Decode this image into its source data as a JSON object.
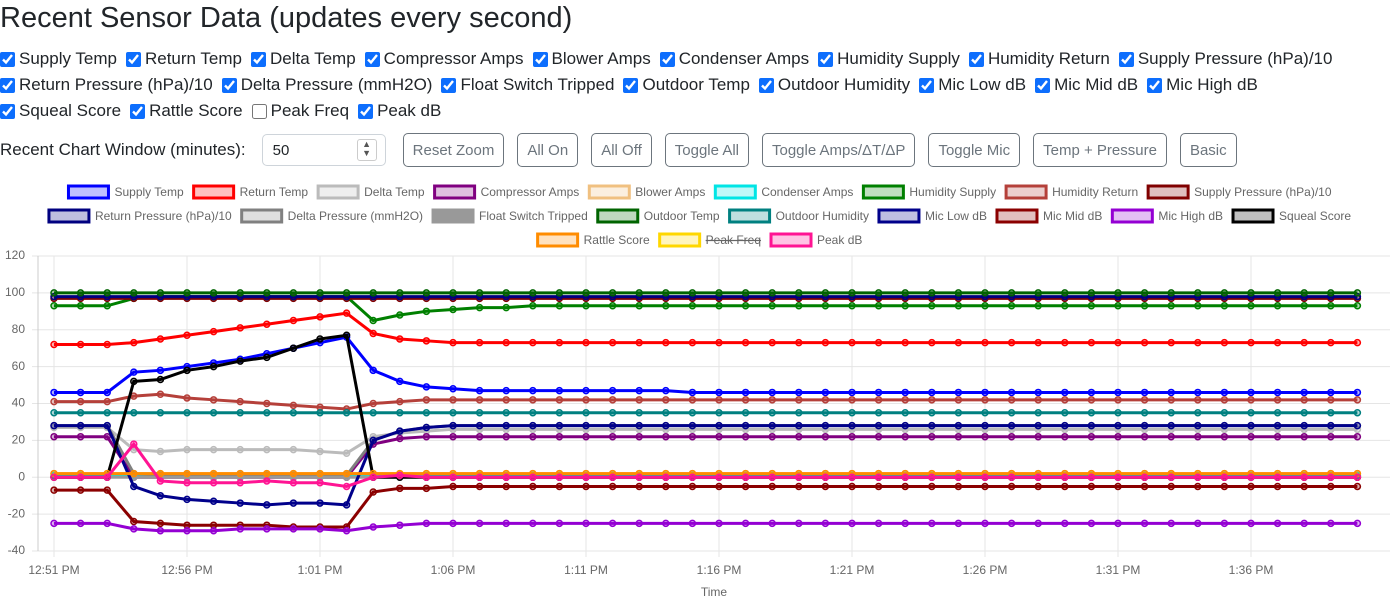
{
  "header": {
    "title": "Recent Sensor Data (updates every second)"
  },
  "controls": {
    "window_label": "Recent Chart Window (minutes):",
    "window_value": "50",
    "buttons": [
      "Reset Zoom",
      "All On",
      "All Off",
      "Toggle All",
      "Toggle Amps/ΔT/ΔP",
      "Toggle Mic",
      "Temp + Pressure",
      "Basic"
    ]
  },
  "chart_data": {
    "type": "line",
    "x_label": "Time",
    "categories": [
      "12:51 PM",
      null,
      null,
      null,
      null,
      "12:56 PM",
      null,
      null,
      null,
      null,
      "1:01 PM",
      null,
      null,
      null,
      null,
      "1:06 PM",
      null,
      null,
      null,
      null,
      "1:11 PM",
      null,
      null,
      null,
      null,
      "1:16 PM",
      null,
      null,
      null,
      null,
      "1:21 PM",
      null,
      null,
      null,
      null,
      "1:26 PM",
      null,
      null,
      null,
      null,
      "1:31 PM",
      null,
      null,
      null,
      null,
      "1:36 PM",
      null,
      null,
      null,
      null
    ],
    "ylim": [
      -40,
      120
    ],
    "yticks": [
      -40,
      -20,
      0,
      20,
      40,
      60,
      80,
      100,
      120
    ],
    "grid": true,
    "legend": "top",
    "series": [
      {
        "name": "Supply Temp",
        "color": "#0000ff",
        "values": [
          46,
          46,
          46,
          57,
          58,
          60,
          62,
          64,
          67,
          70,
          73,
          76,
          58,
          52,
          49,
          48,
          47,
          47,
          47,
          47,
          47,
          47,
          47,
          47,
          46,
          46,
          46,
          46,
          46,
          46,
          46,
          46,
          46,
          46,
          46,
          46,
          46,
          46,
          46,
          46,
          46,
          46,
          46,
          46,
          46,
          46,
          46,
          46,
          46,
          46
        ]
      },
      {
        "name": "Return Temp",
        "color": "#ff0000",
        "values": [
          72,
          72,
          72,
          73,
          75,
          77,
          79,
          81,
          83,
          85,
          87,
          89,
          78,
          75,
          74,
          73,
          73,
          73,
          73,
          73,
          73,
          73,
          73,
          73,
          73,
          73,
          73,
          73,
          73,
          73,
          73,
          73,
          73,
          73,
          73,
          73,
          73,
          73,
          73,
          73,
          73,
          73,
          73,
          73,
          73,
          73,
          73,
          73,
          73,
          73
        ]
      },
      {
        "name": "Delta Temp",
        "color": "#bbbbbb",
        "values": [
          27,
          27,
          27,
          15,
          14,
          15,
          15,
          15,
          15,
          15,
          14,
          13,
          22,
          24,
          25,
          26,
          26,
          26,
          26,
          26,
          26,
          26,
          26,
          26,
          26,
          26,
          26,
          26,
          26,
          26,
          26,
          26,
          26,
          26,
          26,
          26,
          26,
          26,
          26,
          26,
          26,
          26,
          26,
          26,
          26,
          26,
          26,
          26,
          26,
          26
        ]
      },
      {
        "name": "Compressor Amps",
        "color": "#800080",
        "values": [
          22,
          22,
          22,
          0,
          0,
          0,
          0,
          0,
          0,
          0,
          0,
          0,
          18,
          21,
          22,
          22,
          22,
          22,
          22,
          22,
          22,
          22,
          22,
          22,
          22,
          22,
          22,
          22,
          22,
          22,
          22,
          22,
          22,
          22,
          22,
          22,
          22,
          22,
          22,
          22,
          22,
          22,
          22,
          22,
          22,
          22,
          22,
          22,
          22,
          22
        ]
      },
      {
        "name": "Blower Amps",
        "color": "#f0c080",
        "values": [
          2,
          2,
          2,
          2,
          2,
          2,
          2,
          2,
          2,
          2,
          2,
          2,
          2,
          2,
          2,
          2,
          2,
          2,
          2,
          2,
          2,
          2,
          2,
          2,
          2,
          2,
          2,
          2,
          2,
          2,
          2,
          2,
          2,
          2,
          2,
          2,
          2,
          2,
          2,
          2,
          2,
          2,
          2,
          2,
          2,
          2,
          2,
          2,
          2,
          2
        ]
      },
      {
        "name": "Condenser Amps",
        "color": "#00e5e5",
        "values": [
          1,
          1,
          1,
          1,
          1,
          1,
          1,
          1,
          1,
          1,
          1,
          1,
          1,
          1,
          1,
          1,
          1,
          1,
          1,
          1,
          1,
          1,
          1,
          1,
          1,
          1,
          1,
          1,
          1,
          1,
          1,
          1,
          1,
          1,
          1,
          1,
          1,
          1,
          1,
          1,
          1,
          1,
          1,
          1,
          1,
          1,
          1,
          1,
          1,
          1
        ]
      },
      {
        "name": "Humidity Supply",
        "color": "#008000",
        "values": [
          93,
          93,
          93,
          97,
          98,
          98,
          98,
          98,
          98,
          98,
          98,
          98,
          85,
          88,
          90,
          91,
          92,
          92,
          93,
          93,
          93,
          93,
          93,
          93,
          93,
          93,
          93,
          93,
          93,
          93,
          93,
          93,
          93,
          93,
          93,
          93,
          93,
          93,
          93,
          93,
          93,
          93,
          93,
          93,
          93,
          93,
          93,
          93,
          93,
          93
        ]
      },
      {
        "name": "Humidity Return",
        "color": "#b5403a",
        "values": [
          41,
          41,
          41,
          44,
          45,
          43,
          42,
          41,
          40,
          39,
          38,
          37,
          40,
          41,
          42,
          42,
          42,
          42,
          42,
          42,
          42,
          42,
          42,
          42,
          42,
          42,
          42,
          42,
          42,
          42,
          42,
          42,
          42,
          42,
          42,
          42,
          42,
          42,
          42,
          42,
          42,
          42,
          42,
          42,
          42,
          42,
          42,
          42,
          42,
          42
        ]
      },
      {
        "name": "Supply Pressure (hPa)/10",
        "color": "#800000",
        "values": [
          97,
          97,
          97,
          97,
          97,
          97,
          97,
          97,
          97,
          97,
          97,
          97,
          97,
          97,
          97,
          97,
          97,
          97,
          97,
          97,
          97,
          97,
          97,
          97,
          97,
          97,
          97,
          97,
          97,
          97,
          97,
          97,
          97,
          97,
          97,
          97,
          97,
          97,
          97,
          97,
          97,
          97,
          97,
          97,
          97,
          97,
          97,
          97,
          97,
          97
        ]
      },
      {
        "name": "Return Pressure (hPa)/10",
        "color": "#000080",
        "values": [
          98,
          98,
          98,
          98,
          98,
          98,
          98,
          98,
          98,
          98,
          98,
          98,
          98,
          98,
          98,
          98,
          98,
          98,
          98,
          98,
          98,
          98,
          98,
          98,
          98,
          98,
          98,
          98,
          98,
          98,
          98,
          98,
          98,
          98,
          98,
          98,
          98,
          98,
          98,
          98,
          98,
          98,
          98,
          98,
          98,
          98,
          98,
          98,
          98,
          98
        ]
      },
      {
        "name": "Delta Pressure (mmH2O)",
        "color": "#808080",
        "values": [
          28,
          28,
          28,
          2,
          1,
          1,
          1,
          1,
          1,
          1,
          1,
          1,
          20,
          25,
          27,
          28,
          28,
          28,
          28,
          28,
          28,
          28,
          28,
          28,
          28,
          28,
          28,
          28,
          28,
          28,
          28,
          28,
          28,
          28,
          28,
          28,
          28,
          28,
          28,
          28,
          28,
          28,
          28,
          28,
          28,
          28,
          28,
          28,
          28,
          28
        ]
      },
      {
        "name": "Float Switch Tripped",
        "color": "#999999",
        "filled": true,
        "values": [
          0,
          0,
          0,
          0,
          0,
          0,
          0,
          0,
          0,
          0,
          0,
          0,
          0,
          0,
          0,
          0,
          0,
          0,
          0,
          0,
          0,
          0,
          0,
          0,
          0,
          0,
          0,
          0,
          0,
          0,
          0,
          0,
          0,
          0,
          0,
          0,
          0,
          0,
          0,
          0,
          0,
          0,
          0,
          0,
          0,
          0,
          0,
          0,
          0,
          0
        ]
      },
      {
        "name": "Outdoor Temp",
        "color": "#006400",
        "values": [
          100,
          100,
          100,
          100,
          100,
          100,
          100,
          100,
          100,
          100,
          100,
          100,
          100,
          100,
          100,
          100,
          100,
          100,
          100,
          100,
          100,
          100,
          100,
          100,
          100,
          100,
          100,
          100,
          100,
          100,
          100,
          100,
          100,
          100,
          100,
          100,
          100,
          100,
          100,
          100,
          100,
          100,
          100,
          100,
          100,
          100,
          100,
          100,
          100,
          100
        ]
      },
      {
        "name": "Outdoor Humidity",
        "color": "#008080",
        "values": [
          35,
          35,
          35,
          35,
          35,
          35,
          35,
          35,
          35,
          35,
          35,
          35,
          35,
          35,
          35,
          35,
          35,
          35,
          35,
          35,
          35,
          35,
          35,
          35,
          35,
          35,
          35,
          35,
          35,
          35,
          35,
          35,
          35,
          35,
          35,
          35,
          35,
          35,
          35,
          35,
          35,
          35,
          35,
          35,
          35,
          35,
          35,
          35,
          35,
          35
        ]
      },
      {
        "name": "Mic Low dB",
        "color": "#00008b",
        "values": [
          28,
          28,
          28,
          -5,
          -10,
          -12,
          -13,
          -14,
          -15,
          -14,
          -14,
          -15,
          20,
          25,
          27,
          28,
          28,
          28,
          28,
          28,
          28,
          28,
          28,
          28,
          28,
          28,
          28,
          28,
          28,
          28,
          28,
          28,
          28,
          28,
          28,
          28,
          28,
          28,
          28,
          28,
          28,
          28,
          28,
          28,
          28,
          28,
          28,
          28,
          28,
          28
        ]
      },
      {
        "name": "Mic Mid dB",
        "color": "#8b0000",
        "values": [
          -7,
          -7,
          -7,
          -24,
          -25,
          -26,
          -26,
          -26,
          -26,
          -27,
          -27,
          -27,
          -8,
          -6,
          -6,
          -5,
          -5,
          -5,
          -5,
          -5,
          -5,
          -5,
          -5,
          -5,
          -5,
          -5,
          -5,
          -5,
          -5,
          -5,
          -5,
          -5,
          -5,
          -5,
          -5,
          -5,
          -5,
          -5,
          -5,
          -5,
          -5,
          -5,
          -5,
          -5,
          -5,
          -5,
          -5,
          -5,
          -5,
          -5
        ]
      },
      {
        "name": "Mic High dB",
        "color": "#9400d3",
        "values": [
          -25,
          -25,
          -25,
          -28,
          -29,
          -29,
          -29,
          -28,
          -28,
          -28,
          -28,
          -29,
          -27,
          -26,
          -25,
          -25,
          -25,
          -25,
          -25,
          -25,
          -25,
          -25,
          -25,
          -25,
          -25,
          -25,
          -25,
          -25,
          -25,
          -25,
          -25,
          -25,
          -25,
          -25,
          -25,
          -25,
          -25,
          -25,
          -25,
          -25,
          -25,
          -25,
          -25,
          -25,
          -25,
          -25,
          -25,
          -25,
          -25,
          -25
        ]
      },
      {
        "name": "Squeal Score",
        "color": "#000000",
        "values": [
          0,
          0,
          0,
          52,
          53,
          58,
          60,
          63,
          65,
          70,
          75,
          77,
          0,
          0,
          0,
          0,
          0,
          0,
          0,
          0,
          0,
          0,
          0,
          0,
          0,
          0,
          0,
          0,
          0,
          0,
          0,
          0,
          0,
          0,
          0,
          0,
          0,
          0,
          0,
          0,
          0,
          0,
          0,
          0,
          0,
          0,
          0,
          0,
          0,
          0
        ]
      },
      {
        "name": "Rattle Score",
        "color": "#ff8c00",
        "values": [
          2,
          2,
          2,
          2,
          2,
          2,
          2,
          2,
          2,
          2,
          2,
          2,
          2,
          2,
          2,
          2,
          2,
          2,
          2,
          2,
          2,
          2,
          2,
          2,
          2,
          2,
          2,
          2,
          2,
          2,
          2,
          2,
          2,
          2,
          2,
          2,
          2,
          2,
          2,
          2,
          2,
          2,
          2,
          2,
          2,
          2,
          2,
          2,
          2,
          2
        ]
      },
      {
        "name": "Peak Freq",
        "color": "#ffd700",
        "hidden": true
      },
      {
        "name": "Peak dB",
        "color": "#ff1493",
        "values": [
          0,
          0,
          0,
          18,
          -2,
          -3,
          -3,
          -3,
          -2,
          -3,
          -3,
          -5,
          0,
          1,
          0,
          0,
          0,
          0,
          0,
          0,
          0,
          0,
          0,
          0,
          0,
          0,
          0,
          0,
          0,
          0,
          0,
          0,
          0,
          0,
          0,
          0,
          0,
          0,
          0,
          0,
          0,
          0,
          0,
          0,
          0,
          0,
          0,
          0,
          0,
          0
        ]
      }
    ]
  }
}
